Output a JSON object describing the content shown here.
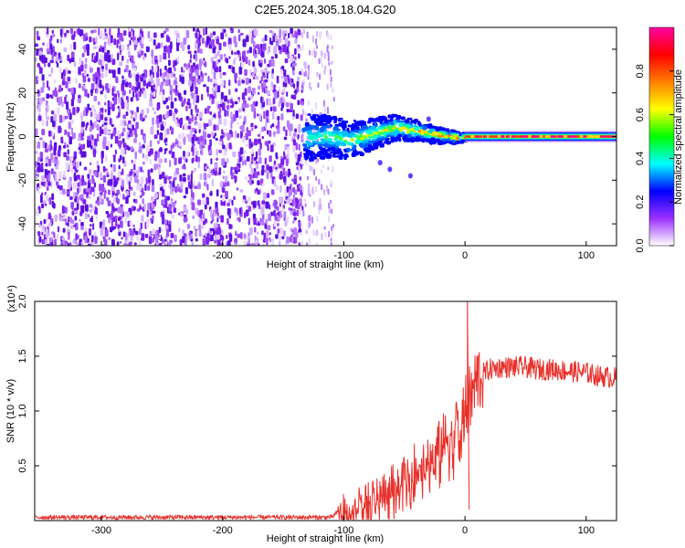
{
  "title": "C2E5.2024.305.18.04.G20",
  "chart_data": [
    {
      "type": "heatmap",
      "xlabel": "Height of straight line (km)",
      "ylabel": "Frequency (Hz)",
      "xlim": [
        -355,
        125
      ],
      "ylim": [
        -50,
        50
      ],
      "x_ticks": [
        -300,
        -200,
        -100,
        0,
        100
      ],
      "x_tick_labels": [
        "-300",
        "-200",
        "-100",
        "0",
        "100"
      ],
      "y_ticks": [
        -40,
        -20,
        0,
        20,
        40
      ],
      "y_tick_labels": [
        "-40",
        "-20",
        "0",
        "20",
        "40"
      ],
      "colorbar": {
        "label": "Normalized spectral amplitude",
        "range": [
          0,
          1
        ],
        "ticks": [
          0.0,
          0.2,
          0.4,
          0.6,
          0.8
        ],
        "tick_labels": [
          "0.0",
          "0.2",
          "0.4",
          "0.6",
          "0.8"
        ],
        "colormap": [
          "#ffffff",
          "#9b30ff",
          "#0000ff",
          "#00ffff",
          "#00ff00",
          "#ffff00",
          "#ff8000",
          "#ff0000",
          "#ff00a0"
        ]
      },
      "features": [
        {
          "region": "noise",
          "x_range": [
            -355,
            -135
          ],
          "y_range": [
            -50,
            50
          ],
          "color": "#7a1ff0",
          "amplitude": 0.15
        },
        {
          "region": "transition",
          "x_range": [
            -135,
            0
          ],
          "center_hz": [
            0,
            1,
            -1,
            2,
            5,
            3,
            1,
            0
          ],
          "amplitude": 0.5
        },
        {
          "region": "carrier",
          "x_range": [
            0,
            125
          ],
          "center_hz": 0,
          "amplitude": 0.9
        }
      ],
      "grid": false
    },
    {
      "type": "line",
      "xlabel": "Height of straight line (km)",
      "ylabel": "SNR (10 * v/v)",
      "y_multiplier": "(x10⁴)",
      "xlim": [
        -355,
        125
      ],
      "ylim": [
        0,
        2.0
      ],
      "x_ticks": [
        -300,
        -200,
        -100,
        0,
        100
      ],
      "x_tick_labels": [
        "-300",
        "-200",
        "-100",
        "0",
        "100"
      ],
      "y_ticks": [
        0.5,
        1.0,
        1.5,
        2.0
      ],
      "y_tick_labels": [
        "0.5",
        "1.0",
        "1.5",
        "2.0"
      ],
      "series": [
        {
          "color": "#e8302a",
          "x": [
            -355,
            -300,
            -250,
            -200,
            -150,
            -110,
            -100,
            -90,
            -80,
            -70,
            -60,
            -50,
            -40,
            -30,
            -20,
            -10,
            -5,
            0,
            5,
            10,
            20,
            30,
            40,
            50,
            60,
            70,
            80,
            90,
            100,
            110,
            125
          ],
          "y": [
            0.03,
            0.03,
            0.03,
            0.03,
            0.03,
            0.03,
            0.12,
            0.15,
            0.2,
            0.26,
            0.33,
            0.42,
            0.52,
            0.62,
            0.72,
            0.82,
            0.9,
            0.98,
            1.1,
            1.3,
            1.38,
            1.4,
            1.4,
            1.4,
            1.38,
            1.38,
            1.37,
            1.36,
            1.35,
            1.32,
            1.3
          ]
        }
      ],
      "grid": false
    }
  ]
}
